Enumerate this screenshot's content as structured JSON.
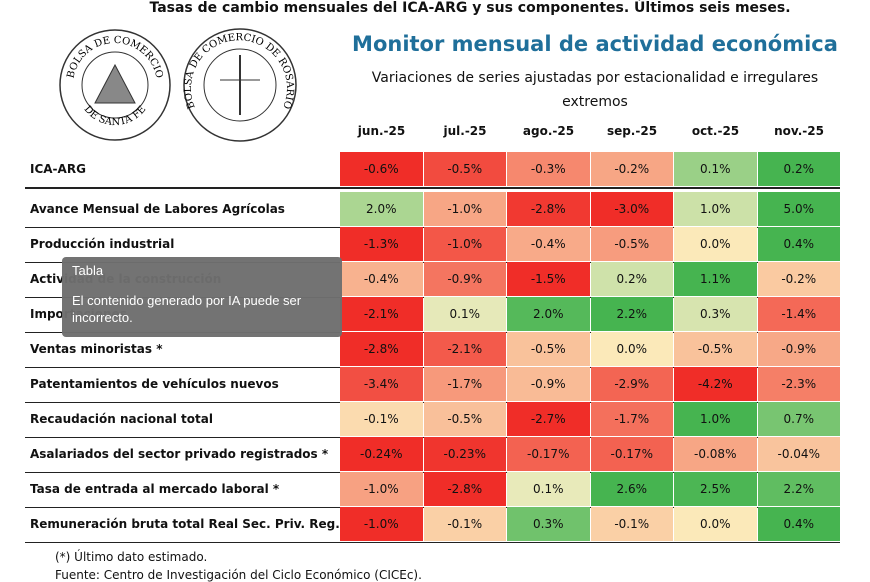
{
  "header": {
    "title": "Tasas de cambio mensuales del ICA-ARG y sus componentes. Últimos seis meses.",
    "monitor_title": "Monitor mensual de actividad económica",
    "subtitle": "Variaciones de series ajustadas por estacionalidad e irregulares extremos"
  },
  "logos": [
    {
      "top": "BOLSA DE COMERCIO",
      "bottom": "DE SANTA FE"
    },
    {
      "top": "BOLSA DE COMERCIO DE ROSARIO"
    }
  ],
  "table": {
    "columns": [
      "jun.-25",
      "jul.-25",
      "ago.-25",
      "sep.-25",
      "oct.-25",
      "nov.-25"
    ],
    "rows": [
      {
        "label": "ICA-ARG",
        "values": [
          "-0.6%",
          "-0.5%",
          "-0.3%",
          "-0.2%",
          "0.1%",
          "0.2%"
        ]
      },
      {
        "label": "Avance Mensual de Labores Agrícolas",
        "values": [
          "2.0%",
          "-1.0%",
          "-2.8%",
          "-3.0%",
          "1.0%",
          "5.0%"
        ]
      },
      {
        "label": "Producción industrial",
        "values": [
          "-1.3%",
          "-1.0%",
          "-0.4%",
          "-0.5%",
          "0.0%",
          "0.4%"
        ]
      },
      {
        "label": "Actividad de la construcción",
        "values": [
          "-0.4%",
          "-0.9%",
          "-1.5%",
          "0.2%",
          "1.1%",
          "-0.2%"
        ]
      },
      {
        "label": "Importaciones",
        "values": [
          "-2.1%",
          "0.1%",
          "2.0%",
          "2.2%",
          "0.3%",
          "-1.4%"
        ]
      },
      {
        "label": "Ventas minoristas *",
        "values": [
          "-2.8%",
          "-2.1%",
          "-0.5%",
          "0.0%",
          "-0.5%",
          "-0.9%"
        ]
      },
      {
        "label": "Patentamientos de vehículos nuevos",
        "values": [
          "-3.4%",
          "-1.7%",
          "-0.9%",
          "-2.9%",
          "-4.2%",
          "-2.3%"
        ]
      },
      {
        "label": "Recaudación nacional total",
        "values": [
          "-0.1%",
          "-0.5%",
          "-2.7%",
          "-1.7%",
          "1.0%",
          "0.7%"
        ]
      },
      {
        "label": "Asalariados del sector privado registrados *",
        "values": [
          "-0.24%",
          "-0.23%",
          "-0.17%",
          "-0.17%",
          "-0.08%",
          "-0.04%"
        ]
      },
      {
        "label": "Tasa de entrada al mercado laboral *",
        "values": [
          "-1.0%",
          "-2.8%",
          "0.1%",
          "2.6%",
          "2.5%",
          "2.2%"
        ]
      },
      {
        "label": "Remuneración bruta total Real Sec. Priv. Reg.*",
        "values": [
          "-1.0%",
          "-0.1%",
          "0.3%",
          "-0.1%",
          "0.0%",
          "0.4%"
        ]
      }
    ]
  },
  "footnotes": [
    "(*) Último dato estimado.",
    "Fuente: Centro de Investigación del Ciclo Económico (CICEc)."
  ],
  "tooltip": {
    "title": "Tabla",
    "text": "El contenido generado por IA puede ser incorrecto."
  }
}
